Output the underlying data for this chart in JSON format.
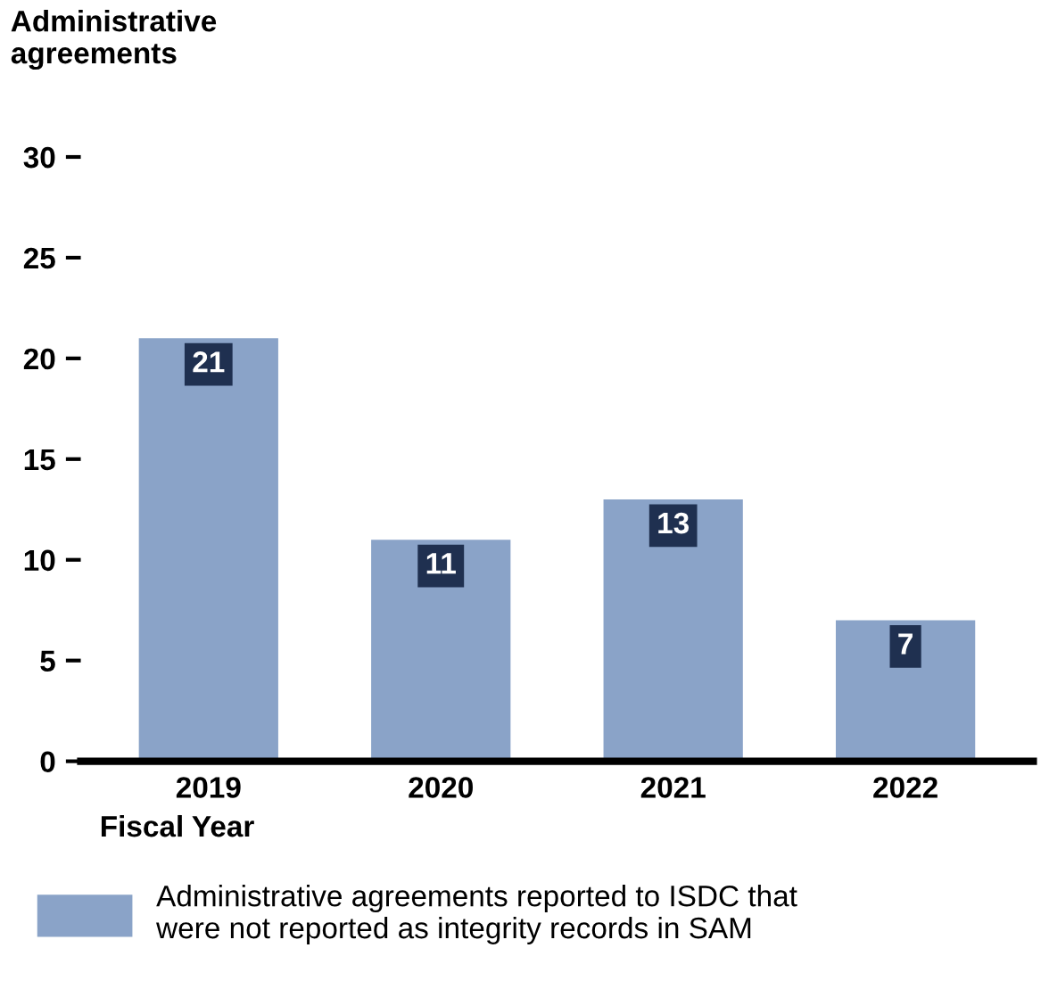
{
  "chart_data": {
    "type": "bar",
    "ylabel": "Administrative\nagreements",
    "xlabel": "Fiscal Year",
    "categories": [
      "2019",
      "2020",
      "2021",
      "2022"
    ],
    "series": [
      {
        "name": "Administrative agreements reported to ISDC that\nwere not reported as integrity records in SAM",
        "color": "#8aa3c8",
        "values": [
          21,
          11,
          13,
          7
        ]
      }
    ],
    "ylim": [
      0,
      30
    ],
    "yticks": [
      0,
      5,
      10,
      15,
      20,
      25,
      30
    ],
    "data_labels": true,
    "grid": false,
    "legend": "bottom"
  }
}
